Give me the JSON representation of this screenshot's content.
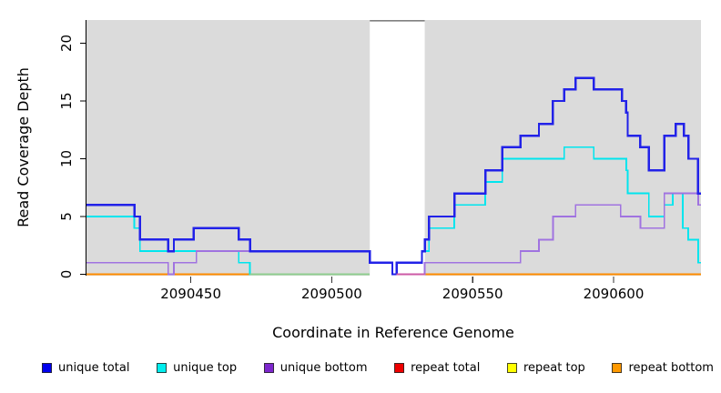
{
  "chart_data": {
    "type": "line",
    "subtype": "step",
    "title": "",
    "xlabel": "Coordinate in Reference Genome",
    "ylabel": "Read Coverage Depth",
    "x_range": [
      2090413,
      2090631
    ],
    "y_range": [
      0,
      22
    ],
    "x_ticks": [
      {
        "value": 2090450,
        "label": "2090450"
      },
      {
        "value": 2090500,
        "label": "2090500"
      },
      {
        "value": 2090550,
        "label": "2090550"
      },
      {
        "value": 2090600,
        "label": "2090600"
      }
    ],
    "y_ticks": [
      {
        "value": 0,
        "label": "0"
      },
      {
        "value": 5,
        "label": "5"
      },
      {
        "value": 10,
        "label": "10"
      },
      {
        "value": 15,
        "label": "15"
      },
      {
        "value": 20,
        "label": "20"
      }
    ],
    "grid": false,
    "panel_color": "#dbdbdb",
    "shaded_regions": [
      {
        "from": 2090413,
        "to": 2090513.5
      },
      {
        "from": 2090533,
        "to": 2090631
      }
    ],
    "gap_region": {
      "from": 2090513.5,
      "to": 2090533,
      "top_value": 21.5,
      "top_border_color": "#808080"
    },
    "series": [
      {
        "name": "repeat total",
        "color": "#EE0000",
        "width": 2,
        "points": [
          [
            2090413,
            0
          ],
          [
            2090513.5,
            null
          ],
          [
            2090533,
            0
          ]
        ]
      },
      {
        "name": "repeat top",
        "color": "#FFFF00",
        "width": 2,
        "points": [
          [
            2090413,
            0
          ],
          [
            2090513.5,
            null
          ],
          [
            2090533,
            0
          ]
        ]
      },
      {
        "name": "repeat bottom",
        "color": "#FF8C00",
        "width": 2.4,
        "points": [
          [
            2090413,
            0
          ],
          [
            2090513.5,
            null
          ],
          [
            2090533,
            0
          ]
        ]
      },
      {
        "name": "unique top",
        "color": "#00E5EE",
        "width": 1.8,
        "points": [
          [
            2090413,
            5
          ],
          [
            2090430,
            4
          ],
          [
            2090432,
            2
          ],
          [
            2090467,
            1
          ],
          [
            2090471,
            0
          ],
          [
            2090513.5,
            null
          ],
          [
            2090523,
            1
          ],
          [
            2090532,
            2
          ],
          [
            2090534.5,
            4
          ],
          [
            2090543.5,
            6
          ],
          [
            2090554.5,
            8
          ],
          [
            2090560.5,
            10
          ],
          [
            2090582.5,
            11
          ],
          [
            2090593,
            10
          ],
          [
            2090604.5,
            9
          ],
          [
            2090605,
            7
          ],
          [
            2090612.5,
            5
          ],
          [
            2090618,
            6
          ],
          [
            2090621,
            7
          ],
          [
            2090624.5,
            4
          ],
          [
            2090626.5,
            3
          ],
          [
            2090630,
            1
          ]
        ]
      },
      {
        "name": "unique bottom",
        "color": "#A073E0",
        "width": 1.8,
        "points": [
          [
            2090413,
            1
          ],
          [
            2090442,
            0
          ],
          [
            2090444,
            1
          ],
          [
            2090452,
            2
          ],
          [
            2090513.5,
            1
          ],
          [
            2090521.5,
            0
          ],
          [
            2090533,
            1
          ],
          [
            2090567,
            2
          ],
          [
            2090573.5,
            3
          ],
          [
            2090578.5,
            5
          ],
          [
            2090586.5,
            6
          ],
          [
            2090602.5,
            5
          ],
          [
            2090609.5,
            4
          ],
          [
            2090618,
            7
          ],
          [
            2090630,
            6
          ]
        ]
      },
      {
        "name": "unique total",
        "color": "#2222E8",
        "width": 2.4,
        "points": [
          [
            2090413,
            6
          ],
          [
            2090430,
            5
          ],
          [
            2090432,
            3
          ],
          [
            2090442,
            2
          ],
          [
            2090444,
            3
          ],
          [
            2090451,
            4
          ],
          [
            2090467,
            3
          ],
          [
            2090471,
            2
          ],
          [
            2090513.5,
            1
          ],
          [
            2090521.5,
            0
          ],
          [
            2090523,
            1
          ],
          [
            2090532,
            2
          ],
          [
            2090533,
            3
          ],
          [
            2090534.5,
            5
          ],
          [
            2090543.5,
            7
          ],
          [
            2090554.5,
            9
          ],
          [
            2090560.5,
            11
          ],
          [
            2090567,
            12
          ],
          [
            2090573.5,
            13
          ],
          [
            2090578.5,
            15
          ],
          [
            2090582.5,
            16
          ],
          [
            2090586.5,
            17
          ],
          [
            2090593,
            16
          ],
          [
            2090603,
            15
          ],
          [
            2090604.5,
            14
          ],
          [
            2090605,
            12
          ],
          [
            2090609.5,
            11
          ],
          [
            2090612.5,
            9
          ],
          [
            2090618,
            12
          ],
          [
            2090622,
            13
          ],
          [
            2090625,
            12
          ],
          [
            2090626.5,
            10
          ],
          [
            2090630,
            7
          ]
        ]
      }
    ],
    "baseline_overlap_segments": [
      {
        "from": 2090471,
        "to": 2090513.5,
        "value": 0,
        "color": "#8FCE8F",
        "width": 2
      },
      {
        "from": 2090523,
        "to": 2090533,
        "value": 0,
        "color": "#CC5AA6",
        "width": 1.8
      }
    ],
    "legend": [
      {
        "label": "unique total",
        "color": "#0000EE"
      },
      {
        "label": "unique top",
        "color": "#00EEEE"
      },
      {
        "label": "unique bottom",
        "color": "#7D26CD"
      },
      {
        "label": "repeat total",
        "color": "#EE0000"
      },
      {
        "label": "repeat top",
        "color": "#FFFF00"
      },
      {
        "label": "repeat bottom",
        "color": "#FF9900"
      }
    ],
    "legend_position": "bottom"
  }
}
